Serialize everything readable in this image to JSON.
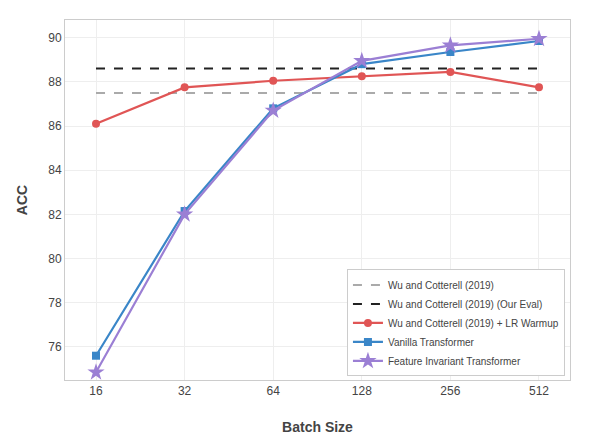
{
  "chart_data": {
    "type": "line",
    "xlabel": "Batch Size",
    "ylabel": "ACC",
    "categories": [
      "16",
      "32",
      "64",
      "128",
      "256",
      "512"
    ],
    "series": [
      {
        "name": "Wu and Cotterell (2019)",
        "color": "#aaaaaa",
        "line_style": "dashed",
        "marker": "none",
        "values": [
          87.5,
          87.5,
          87.5,
          87.5,
          87.5,
          87.5
        ]
      },
      {
        "name": "Wu and Cotterell (2019) (Our Eval)",
        "color": "#222222",
        "line_style": "dashed",
        "marker": "none",
        "values": [
          88.6,
          88.6,
          88.6,
          88.6,
          88.6,
          88.6
        ]
      },
      {
        "name": "Wu and Cotterell (2019) + LR Warmup",
        "color": "#e05555",
        "line_style": "solid",
        "marker": "circle",
        "values": [
          86.1,
          87.75,
          88.05,
          88.25,
          88.45,
          87.75
        ]
      },
      {
        "name": "Vanilla Transformer",
        "color": "#3a86c8",
        "line_style": "solid",
        "marker": "square",
        "values": [
          75.6,
          82.15,
          86.8,
          88.8,
          89.35,
          89.85
        ]
      },
      {
        "name": "Feature Invariant Transformer",
        "color": "#9b7fd4",
        "line_style": "solid",
        "marker": "star",
        "values": [
          74.85,
          82.0,
          86.7,
          88.95,
          89.65,
          89.95
        ]
      }
    ],
    "ylim": [
      74.5,
      90.8
    ],
    "yticks": [
      76,
      78,
      80,
      82,
      84,
      86,
      88,
      90
    ],
    "grid": true,
    "legend": "lower right"
  }
}
